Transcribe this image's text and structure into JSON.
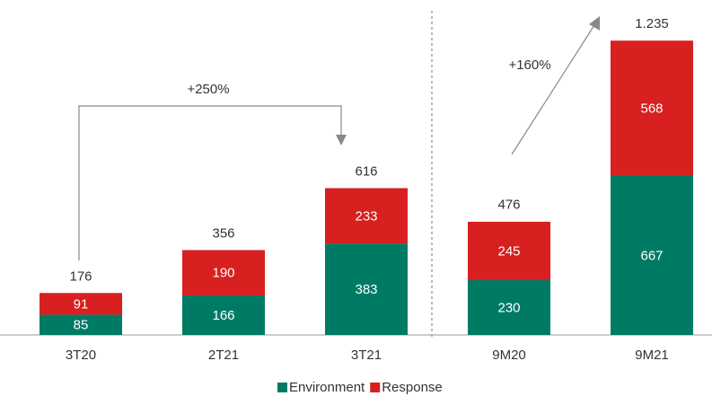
{
  "chart_data": {
    "type": "stacked_bar",
    "categories": [
      "3T20",
      "2T21",
      "3T21",
      "9M20",
      "9M21"
    ],
    "series": [
      {
        "name": "Environment",
        "color": "#007b63",
        "values": [
          85,
          166,
          383,
          230,
          667
        ]
      },
      {
        "name": "Response",
        "color": "#d7201f",
        "values": [
          91,
          190,
          233,
          245,
          568
        ]
      }
    ],
    "totals": [
      176,
      356,
      616,
      476,
      1235
    ],
    "value_labels": [
      "176",
      "356",
      "616",
      "476",
      "1.235"
    ],
    "annotations": [
      "+250%",
      "+160%"
    ],
    "ylim": [
      0,
      1300
    ]
  }
}
